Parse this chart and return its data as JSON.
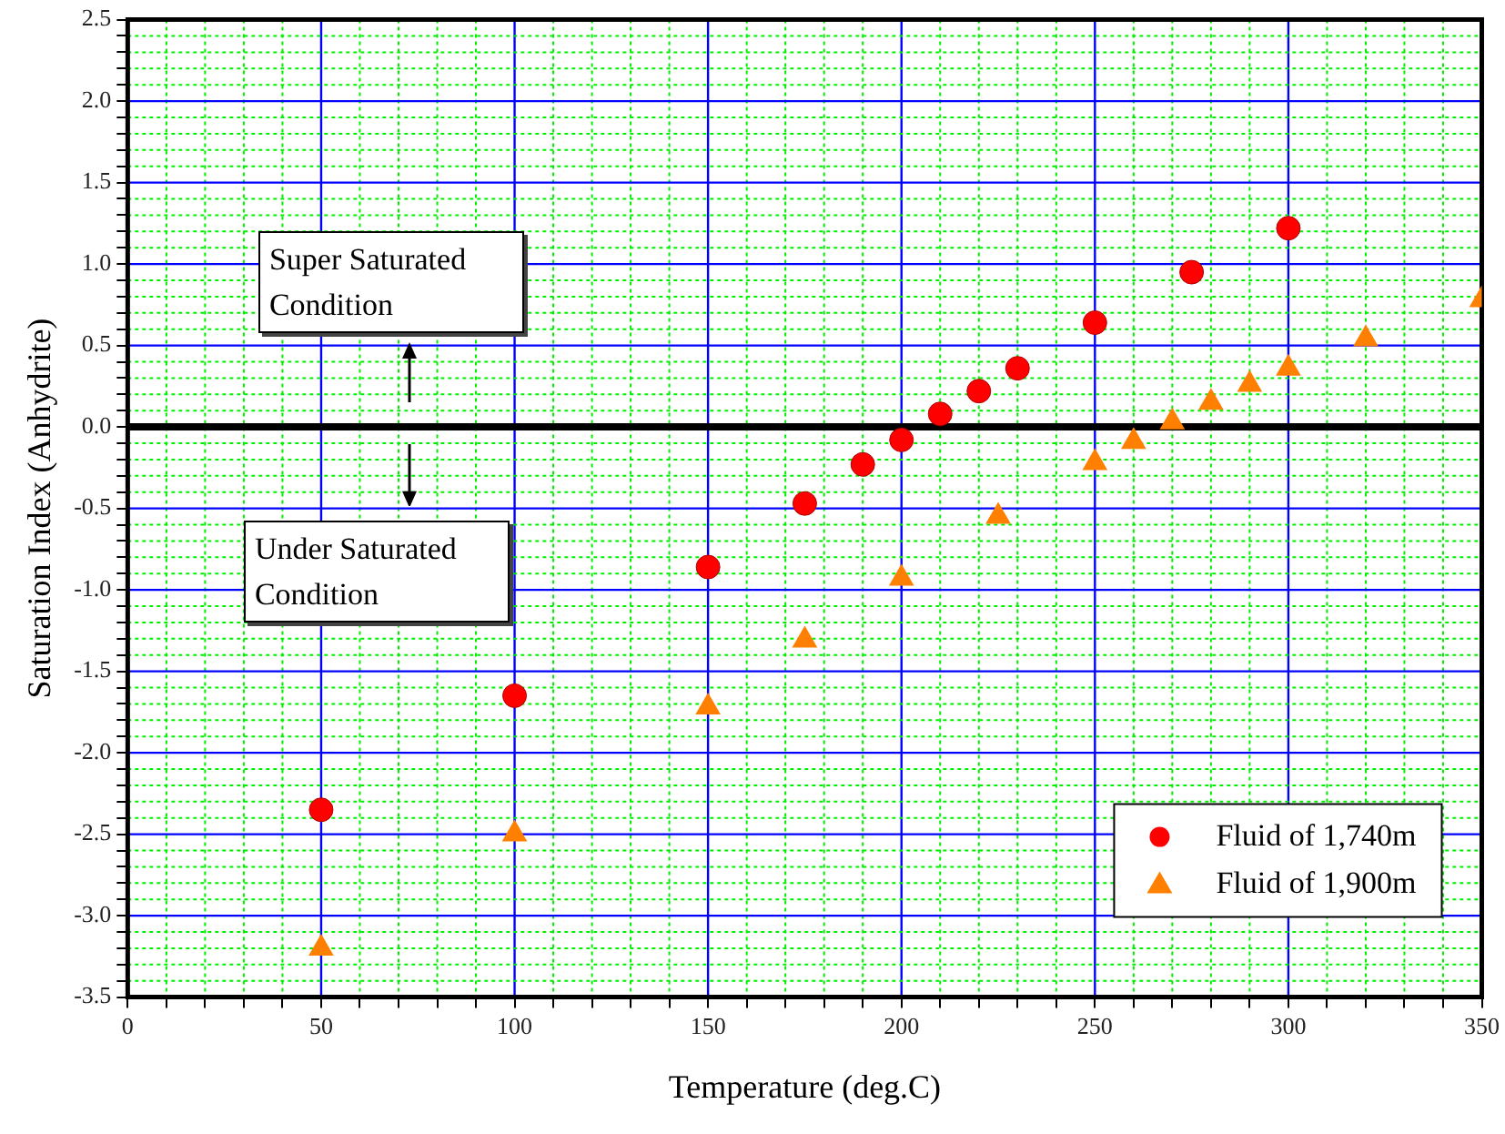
{
  "chart_data": {
    "type": "scatter",
    "xlabel": "Temperature (deg.C)",
    "ylabel": "Saturation Index (Anhydrite)",
    "xlim": [
      0,
      350
    ],
    "xticks": [
      0,
      {
        "value": 10,
        "label": null
      },
      {
        "value": 20,
        "label": null
      },
      {
        "value": 30,
        "label": null
      },
      {
        "value": 40,
        "label": null
      },
      50,
      {
        "value": 60,
        "label": null
      },
      {
        "value": 70,
        "label": null
      },
      {
        "value": 80,
        "label": null
      },
      {
        "value": 90,
        "label": null
      },
      100,
      {
        "value": 110,
        "label": null
      },
      {
        "value": 120,
        "label": null
      },
      {
        "value": 130,
        "label": null
      },
      {
        "value": 140,
        "label": null
      },
      150,
      {
        "value": 160,
        "label": null
      },
      {
        "value": 170,
        "label": null
      },
      {
        "value": 180,
        "label": null
      },
      {
        "value": 190,
        "label": null
      },
      200,
      {
        "value": 210,
        "label": null
      },
      {
        "value": 220,
        "label": null
      },
      {
        "value": 230,
        "label": null
      },
      {
        "value": 240,
        "label": null
      },
      250,
      {
        "value": 260,
        "label": null
      },
      {
        "value": 270,
        "label": null
      },
      {
        "value": 280,
        "label": null
      },
      {
        "value": 290,
        "label": null
      },
      300,
      {
        "value": 310,
        "label": null
      },
      {
        "value": 320,
        "label": null
      },
      {
        "value": 330,
        "label": null
      },
      {
        "value": 340,
        "label": null
      },
      350
    ],
    "ylim": [
      -3.5,
      2.5
    ],
    "yticks": [
      {
        "value": -3.5,
        "label": "-3.5"
      },
      {
        "value": -3.4,
        "label": null
      },
      {
        "value": -3.3,
        "label": null
      },
      {
        "value": -3.2,
        "label": null
      },
      {
        "value": -3.1,
        "label": null
      },
      {
        "value": -3,
        "label": "-3.0"
      },
      {
        "value": -2.9,
        "label": null
      },
      {
        "value": -2.8,
        "label": null
      },
      {
        "value": -2.7,
        "label": null
      },
      {
        "value": -2.6,
        "label": null
      },
      {
        "value": -2.5,
        "label": "-2.5"
      },
      {
        "value": -2.4,
        "label": null
      },
      {
        "value": -2.3,
        "label": null
      },
      {
        "value": -2.2,
        "label": null
      },
      {
        "value": -2.1,
        "label": null
      },
      {
        "value": -2,
        "label": "-2.0"
      },
      {
        "value": -1.9,
        "label": null
      },
      {
        "value": -1.8,
        "label": null
      },
      {
        "value": -1.7,
        "label": null
      },
      {
        "value": -1.6,
        "label": null
      },
      {
        "value": -1.5,
        "label": "-1.5"
      },
      {
        "value": -1.4,
        "label": null
      },
      {
        "value": -1.3,
        "label": null
      },
      {
        "value": -1.2,
        "label": null
      },
      {
        "value": -1.1,
        "label": null
      },
      {
        "value": -1,
        "label": "-1.0"
      },
      {
        "value": -0.9,
        "label": null
      },
      {
        "value": -0.8,
        "label": null
      },
      {
        "value": -0.7,
        "label": null
      },
      {
        "value": -0.6,
        "label": null
      },
      {
        "value": -0.5,
        "label": "-0.5"
      },
      {
        "value": -0.4,
        "label": null
      },
      {
        "value": -0.3,
        "label": null
      },
      {
        "value": -0.2,
        "label": null
      },
      {
        "value": -0.1,
        "label": null
      },
      {
        "value": 0,
        "label": "0.0"
      },
      {
        "value": 0.1,
        "label": null
      },
      {
        "value": 0.2,
        "label": null
      },
      {
        "value": 0.3,
        "label": null
      },
      {
        "value": 0.4,
        "label": null
      },
      {
        "value": 0.5,
        "label": "0.5"
      },
      {
        "value": 0.6,
        "label": null
      },
      {
        "value": 0.7,
        "label": null
      },
      {
        "value": 0.8,
        "label": null
      },
      {
        "value": 0.9,
        "label": null
      },
      {
        "value": 1,
        "label": "1.0"
      },
      {
        "value": 1.1,
        "label": null
      },
      {
        "value": 1.2,
        "label": null
      },
      {
        "value": 1.3,
        "label": null
      },
      {
        "value": 1.4,
        "label": null
      },
      {
        "value": 1.5,
        "label": "1.5"
      },
      {
        "value": 1.6,
        "label": null
      },
      {
        "value": 1.7,
        "label": null
      },
      {
        "value": 1.8,
        "label": null
      },
      {
        "value": 1.9,
        "label": null
      },
      {
        "value": 2,
        "label": "2.0"
      },
      {
        "value": 2.1,
        "label": null
      },
      {
        "value": 2.2,
        "label": null
      },
      {
        "value": 2.3,
        "label": null
      },
      {
        "value": 2.4,
        "label": null
      },
      {
        "value": 2.5,
        "label": "2.5"
      }
    ],
    "grid": true,
    "legend": "bottom right",
    "series": [
      {
        "name": "Fluid of 1,740m",
        "color": "#ff0000",
        "marker": "circle",
        "x": [
          50,
          100,
          150,
          175,
          190,
          200,
          210,
          220,
          230,
          250,
          275,
          300
        ],
        "values": [
          -2.35,
          -1.65,
          -0.86,
          -0.47,
          -0.23,
          -0.08,
          0.08,
          0.22,
          0.36,
          0.64,
          0.95,
          1.22
        ]
      },
      {
        "name": "Fluid of 1,900m",
        "color": "#ff8000",
        "marker": "triangle",
        "x": [
          50,
          100,
          150,
          175,
          200,
          225,
          250,
          260,
          270,
          280,
          290,
          300,
          320,
          350
        ],
        "values": [
          -3.2,
          -2.5,
          -1.72,
          -1.31,
          -0.93,
          -0.55,
          -0.22,
          -0.09,
          0.03,
          0.15,
          0.26,
          0.36,
          0.54,
          0.78
        ]
      }
    ],
    "ref_lines": [
      {
        "axis": "y",
        "value": 0,
        "color": "#000000"
      }
    ],
    "annotations": [
      "Super Saturated Condition",
      "Under Saturated Condition"
    ]
  }
}
